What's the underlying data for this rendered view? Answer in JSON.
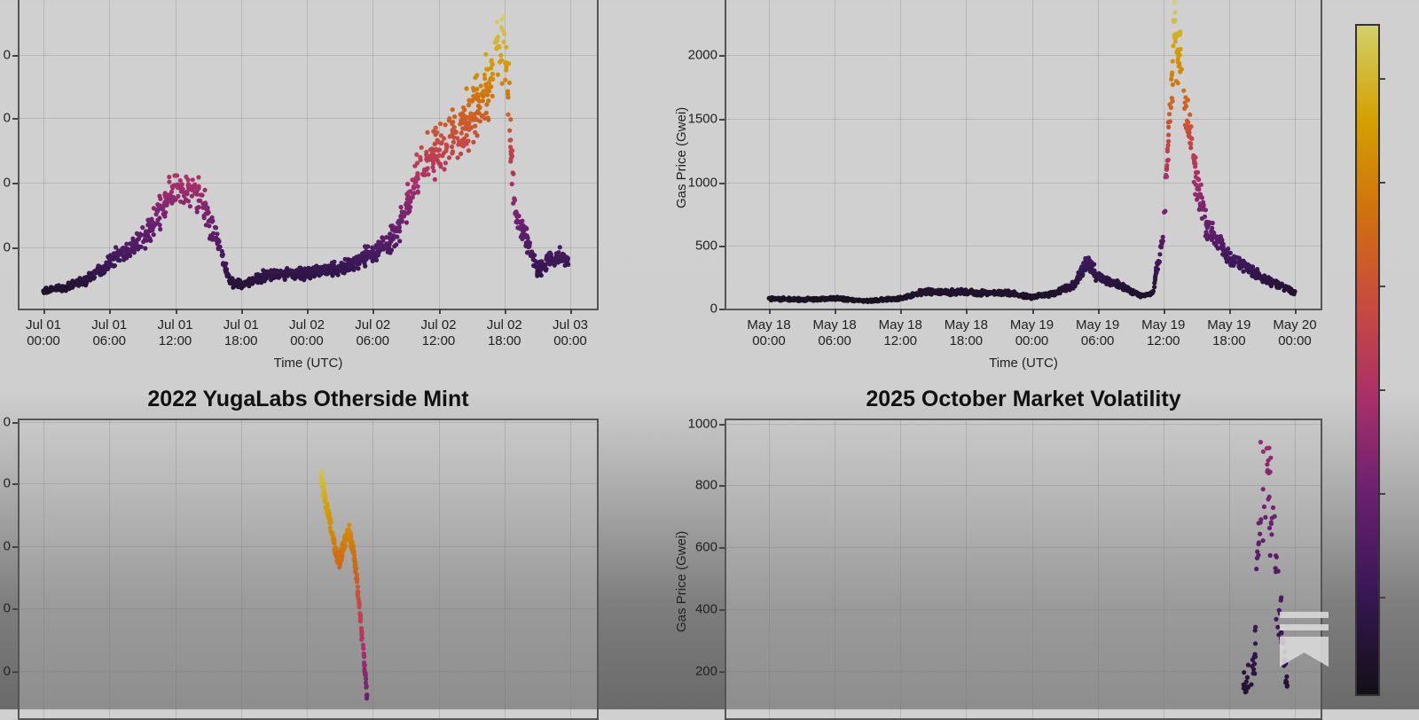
{
  "figure": {
    "colorbar": {
      "colormap": "inferno",
      "colors": [
        "#d2d06a",
        "#d4a000",
        "#d07010",
        "#c84a40",
        "#a8306a",
        "#6a2070",
        "#3a1858",
        "#121016"
      ],
      "tick_count": 6,
      "tick_labels_visible": false
    },
    "overlay_icon": "bookmark-logo-icon"
  },
  "panels": [
    {
      "id": "top-left",
      "title": "",
      "xlabel": "Time (UTC)",
      "ylabel": "",
      "ytick_labels": [
        "",
        "",
        "",
        ""
      ],
      "xtick_labels": [
        [
          "Jul 01",
          "00:00"
        ],
        [
          "Jul 01",
          "06:00"
        ],
        [
          "Jul 01",
          "12:00"
        ],
        [
          "Jul 01",
          "18:00"
        ],
        [
          "Jul 02",
          "00:00"
        ],
        [
          "Jul 02",
          "06:00"
        ],
        [
          "Jul 02",
          "12:00"
        ],
        [
          "Jul 02",
          "18:00"
        ],
        [
          "Jul 03",
          "00:00"
        ]
      ]
    },
    {
      "id": "top-right",
      "title": "",
      "xlabel": "Time (UTC)",
      "ylabel": "Gas Price (Gwei)",
      "ytick_labels": [
        "0",
        "500",
        "1000",
        "1500",
        "2000"
      ],
      "xtick_labels": [
        [
          "May 18",
          "00:00"
        ],
        [
          "May 18",
          "06:00"
        ],
        [
          "May 18",
          "12:00"
        ],
        [
          "May 18",
          "18:00"
        ],
        [
          "May 19",
          "00:00"
        ],
        [
          "May 19",
          "06:00"
        ],
        [
          "May 19",
          "12:00"
        ],
        [
          "May 19",
          "18:00"
        ],
        [
          "May 20",
          "00:00"
        ]
      ]
    },
    {
      "id": "bottom-left",
      "title": "2022 YugaLabs Otherside Mint",
      "xlabel": "",
      "ylabel": "",
      "ytick_labels": [
        "",
        "",
        "",
        "",
        ""
      ],
      "xtick_labels": []
    },
    {
      "id": "bottom-right",
      "title": "2025 October Market Volatility",
      "xlabel": "",
      "ylabel": "Gas Price (Gwei)",
      "ytick_labels": [
        "200",
        "400",
        "600",
        "800",
        "1000"
      ],
      "xtick_labels": []
    }
  ],
  "chart_data": [
    {
      "type": "scatter",
      "title": "",
      "xlabel": "Time (UTC)",
      "ylabel": "",
      "x_range": [
        "Jul 01 00:00",
        "Jul 03 00:00"
      ],
      "x_ticks": [
        "Jul 01 00:00",
        "Jul 01 06:00",
        "Jul 01 12:00",
        "Jul 01 18:00",
        "Jul 02 00:00",
        "Jul 02 06:00",
        "Jul 02 12:00",
        "Jul 02 18:00",
        "Jul 03 00:00"
      ],
      "y_tick_labels_cropped": true,
      "grid": true,
      "color_by": "gas price (inferno colormap)",
      "series": [
        {
          "name": "gas price (trend, relative 0-1 of y-axis)",
          "x_hours": [
            0,
            2,
            4,
            6,
            8,
            10,
            11,
            12,
            13,
            14,
            15,
            16,
            17,
            18,
            20,
            22,
            24,
            26,
            28,
            30,
            32,
            33,
            34,
            36,
            38,
            39,
            40,
            41,
            42,
            43,
            44,
            45,
            46,
            47,
            48
          ],
          "values": [
            0.05,
            0.06,
            0.09,
            0.15,
            0.2,
            0.28,
            0.34,
            0.42,
            0.38,
            0.4,
            0.3,
            0.2,
            0.08,
            0.07,
            0.1,
            0.11,
            0.11,
            0.12,
            0.14,
            0.18,
            0.24,
            0.33,
            0.45,
            0.55,
            0.6,
            0.65,
            0.72,
            0.82,
            0.94,
            0.3,
            0.24,
            0.12,
            0.16,
            0.17,
            0.15
          ]
        }
      ]
    },
    {
      "type": "scatter",
      "title": "",
      "xlabel": "Time (UTC)",
      "ylabel": "Gas Price (Gwei)",
      "x_range": [
        "May 18 00:00",
        "May 20 00:00"
      ],
      "x_ticks": [
        "May 18 00:00",
        "May 18 06:00",
        "May 18 12:00",
        "May 18 18:00",
        "May 19 00:00",
        "May 19 06:00",
        "May 19 12:00",
        "May 19 18:00",
        "May 20 00:00"
      ],
      "y_ticks": [
        0,
        500,
        1000,
        1500,
        2000
      ],
      "ylim": [
        0,
        2400
      ],
      "grid": true,
      "color_by": "gas price (inferno colormap)",
      "series": [
        {
          "name": "gas price (Gwei)",
          "x_hours": [
            0,
            3,
            6,
            9,
            12,
            14,
            18,
            22,
            24,
            26,
            28,
            29,
            30,
            32,
            34,
            35,
            36,
            37,
            38,
            39,
            40,
            42,
            44,
            46,
            47,
            48
          ],
          "values": [
            80,
            70,
            80,
            60,
            80,
            130,
            130,
            120,
            90,
            120,
            200,
            380,
            250,
            180,
            100,
            120,
            600,
            2200,
            1600,
            1000,
            650,
            400,
            300,
            200,
            180,
            130
          ]
        }
      ]
    },
    {
      "type": "scatter",
      "title": "2022 YugaLabs Otherside Mint",
      "xlabel": "",
      "ylabel": "",
      "y_tick_labels_cropped": true,
      "grid": true,
      "color_by": "gas price (inferno colormap)",
      "series": [
        {
          "name": "gas price (relative 0-1 of visible y-axis, spike near x≈0.48)",
          "x_rel": [
            0.47,
            0.475,
            0.48,
            0.485,
            0.49,
            0.495,
            0.5,
            0.505,
            0.51,
            0.515,
            0.52
          ],
          "values": [
            0.88,
            0.78,
            0.7,
            0.6,
            0.56,
            0.62,
            0.68,
            0.6,
            0.45,
            0.25,
            0.05
          ]
        }
      ]
    },
    {
      "type": "scatter",
      "title": "2025 October Market Volatility",
      "xlabel": "",
      "ylabel": "Gas Price (Gwei)",
      "y_ticks": [
        200,
        400,
        600,
        800,
        1000
      ],
      "ylim": [
        0,
        1000
      ],
      "grid": true,
      "color_by": "gas price (inferno colormap)",
      "series": [
        {
          "name": "gas price (Gwei), spike near right edge (x≈0.87-0.90 of range)",
          "x_rel": [
            0.86,
            0.87,
            0.875,
            0.88,
            0.885,
            0.89,
            0.895,
            0.9
          ],
          "values": [
            180,
            210,
            910,
            830,
            770,
            500,
            350,
            120
          ]
        }
      ]
    }
  ]
}
